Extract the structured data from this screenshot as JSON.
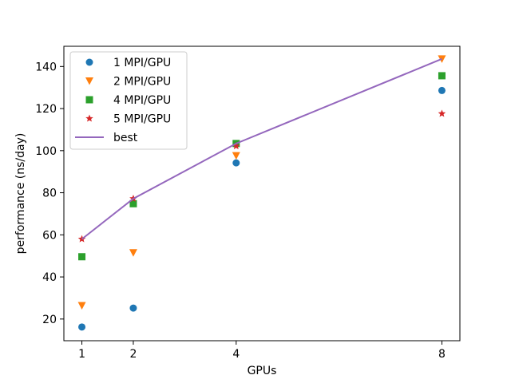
{
  "chart_data": {
    "type": "scatter",
    "title": "",
    "xlabel": "GPUs",
    "ylabel": "performance (ns/day)",
    "xlim": [
      0.65,
      8.35
    ],
    "ylim": [
      9.7,
      149.6
    ],
    "xticks": [
      1,
      2,
      4,
      8
    ],
    "yticks": [
      20,
      40,
      60,
      80,
      100,
      120,
      140
    ],
    "grid": false,
    "legend_position": "top-left",
    "series": [
      {
        "name": "1 MPI/GPU",
        "type": "scatter",
        "marker": "circle",
        "color": "#1f77b4",
        "x": [
          1,
          2,
          4,
          8
        ],
        "y": [
          16.2,
          25.2,
          94.2,
          128.6
        ]
      },
      {
        "name": "2 MPI/GPU",
        "type": "scatter",
        "marker": "triangle-down",
        "color": "#ff7f0e",
        "x": [
          1,
          2,
          4,
          8
        ],
        "y": [
          26.4,
          51.5,
          97.6,
          143.6
        ]
      },
      {
        "name": "4 MPI/GPU",
        "type": "scatter",
        "marker": "square",
        "color": "#2ca02c",
        "x": [
          1,
          2,
          4,
          8
        ],
        "y": [
          49.6,
          74.8,
          103.4,
          135.6
        ]
      },
      {
        "name": "5 MPI/GPU",
        "type": "scatter",
        "marker": "star",
        "color": "#d62728",
        "x": [
          1,
          2,
          4,
          8
        ],
        "y": [
          58.0,
          77.2,
          102.2,
          117.6
        ]
      },
      {
        "name": "best",
        "type": "line",
        "color": "#9467bd",
        "x": [
          1,
          2,
          4,
          8
        ],
        "y": [
          58.0,
          77.2,
          103.4,
          143.6
        ]
      }
    ]
  }
}
